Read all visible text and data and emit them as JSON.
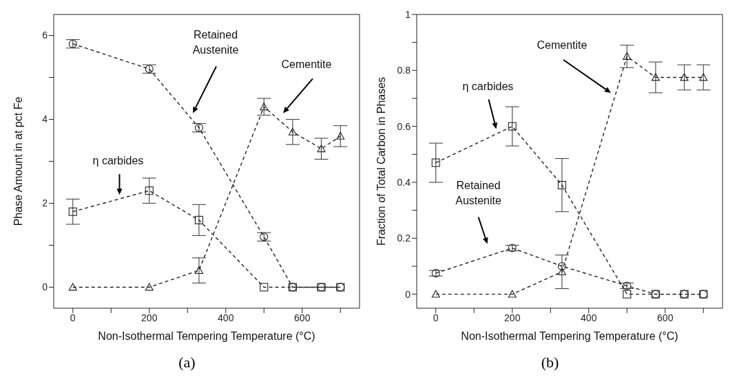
{
  "chart_data": [
    {
      "type": "line",
      "xlabel": "Non-Isothermal Tempering Temperature (°C)",
      "ylabel": "Phase Amount in at pct Fe",
      "x": [
        0,
        200,
        330,
        500,
        575,
        650,
        700
      ],
      "series": [
        {
          "color": "#222222",
          "marker": "circle",
          "values": [
            5.8,
            5.2,
            3.8,
            1.2,
            0,
            0,
            0
          ],
          "errors": [
            0.1,
            0.1,
            0.1,
            0.1,
            null,
            null,
            null
          ]
        },
        {
          "color": "#222222",
          "marker": "square",
          "values": [
            1.8,
            2.3,
            1.6,
            0,
            0,
            0,
            0
          ],
          "errors": [
            0.3,
            0.3,
            0.37,
            null,
            null,
            null,
            null
          ]
        },
        {
          "color": "#222222",
          "marker": "triangle",
          "values": [
            0,
            0,
            0.4,
            4.3,
            3.7,
            3.3,
            3.6
          ],
          "errors": [
            null,
            null,
            0.3,
            0.2,
            0.3,
            0.25,
            0.25
          ]
        }
      ],
      "xlim": [
        -50,
        750
      ],
      "xticks": [
        0,
        {
          "value": 100,
          "label": null
        },
        200,
        {
          "value": 300,
          "label": null
        },
        400,
        {
          "value": 500,
          "label": null
        },
        600,
        {
          "value": 700,
          "label": null
        }
      ],
      "ylim": [
        -0.5,
        6.5
      ],
      "yticks": [
        0,
        {
          "value": 1,
          "label": null
        },
        2,
        {
          "value": 3,
          "label": null
        },
        4,
        {
          "value": 5,
          "label": null
        },
        6
      ],
      "line_style": "dashed",
      "grid": false,
      "legend": false,
      "annotations": [
        "Retained Austenite",
        "Cementite",
        "η carbides",
        "(a)"
      ]
    },
    {
      "type": "line",
      "xlabel": "Non-Isothermal Tempering Temperature (°C)",
      "ylabel": "Fraction of Total Carbon in Phases",
      "x": [
        0,
        200,
        330,
        500,
        575,
        650,
        700
      ],
      "series": [
        {
          "color": "#222222",
          "marker": "circle",
          "values": [
            0.075,
            0.165,
            0.1,
            0.03,
            0,
            0,
            0
          ],
          "errors": [
            0.01,
            0.01,
            null,
            0.01,
            null,
            null,
            null
          ]
        },
        {
          "color": "#222222",
          "marker": "square",
          "values": [
            0.47,
            0.6,
            0.39,
            0,
            0,
            0,
            0
          ],
          "errors": [
            0.07,
            0.07,
            0.095,
            null,
            null,
            null,
            null
          ]
        },
        {
          "color": "#222222",
          "marker": "triangle",
          "values": [
            0,
            0,
            0.08,
            0.85,
            0.775,
            0.775,
            0.775
          ],
          "errors": [
            null,
            null,
            0.06,
            0.04,
            0.055,
            0.045,
            0.045
          ]
        }
      ],
      "xlim": [
        -50,
        750
      ],
      "xticks": [
        0,
        {
          "value": 100,
          "label": null
        },
        200,
        {
          "value": 300,
          "label": null
        },
        400,
        {
          "value": 500,
          "label": null
        },
        600,
        {
          "value": 700,
          "label": null
        }
      ],
      "ylim": [
        -0.05,
        1
      ],
      "yticks": [
        0,
        {
          "value": 0.1,
          "label": null
        },
        0.2,
        {
          "value": 0.3,
          "label": null
        },
        0.4,
        {
          "value": 0.5,
          "label": null
        },
        0.6,
        {
          "value": 0.7,
          "label": null
        },
        0.8,
        {
          "value": 0.9,
          "label": null
        },
        1
      ],
      "line_style": "dashed",
      "grid": false,
      "legend": false,
      "annotations": [
        "Cementite",
        "η carbides",
        "Retained Austenite",
        "(b)"
      ]
    }
  ]
}
